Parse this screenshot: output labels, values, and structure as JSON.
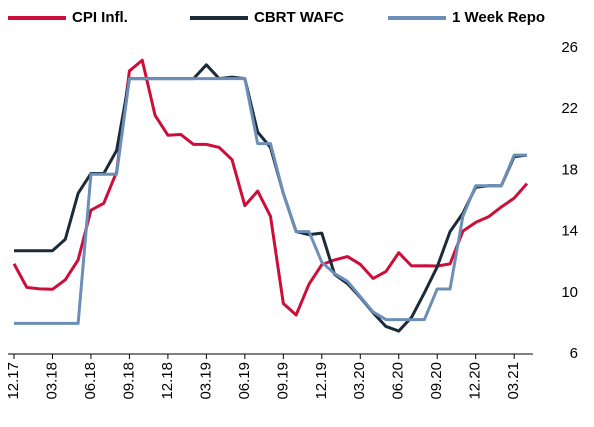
{
  "chart_data": {
    "type": "line",
    "categories": [
      "12.17",
      null,
      null,
      "03.18",
      null,
      null,
      "06.18",
      null,
      null,
      "09.18",
      null,
      null,
      "12.18",
      null,
      null,
      "03.19",
      null,
      null,
      "06.19",
      null,
      null,
      "09.19",
      null,
      null,
      "12.19",
      null,
      null,
      "03.20",
      null,
      null,
      "06.20",
      null,
      null,
      "09.20",
      null,
      null,
      "12.20",
      null,
      null,
      "03.21",
      null
    ],
    "series": [
      {
        "name": "CPI Infl.",
        "color": "#cc0e3a",
        "values": [
          11.9,
          10.35,
          10.26,
          10.23,
          10.85,
          12.15,
          15.4,
          15.85,
          17.9,
          24.5,
          25.2,
          21.6,
          20.3,
          20.35,
          19.7,
          19.7,
          19.5,
          18.7,
          15.7,
          16.65,
          15.0,
          9.3,
          8.55,
          10.56,
          11.84,
          12.15,
          12.37,
          11.86,
          10.94,
          11.39,
          12.62,
          11.76,
          11.77,
          11.75,
          11.89,
          14.03,
          14.6,
          14.97,
          15.61,
          16.19,
          17.14
        ]
      },
      {
        "name": "CBRT WAFC",
        "color": "#1c2b3a",
        "values": [
          12.75,
          12.75,
          12.75,
          12.75,
          13.5,
          16.5,
          17.8,
          17.8,
          19.3,
          24,
          24,
          24,
          24,
          24,
          24,
          24.9,
          24,
          24.1,
          24,
          20.5,
          19.5,
          16.5,
          14,
          13.8,
          13.9,
          11.2,
          10.6,
          9.7,
          8.7,
          7.8,
          7.5,
          8.4,
          10,
          11.7,
          14,
          15.2,
          16.9,
          17,
          17,
          18.9,
          19
        ]
      },
      {
        "name": "1 Week Repo",
        "color": "#6b8fb6",
        "values": [
          8,
          8,
          8,
          8,
          8,
          8,
          17.75,
          17.75,
          17.75,
          24,
          24,
          24,
          24,
          24,
          24,
          24,
          24,
          24,
          24,
          19.75,
          19.75,
          16.5,
          14,
          14,
          12,
          11.25,
          10.75,
          9.75,
          8.75,
          8.25,
          8.25,
          8.25,
          8.25,
          10.25,
          10.25,
          15,
          17,
          17,
          17,
          19,
          19
        ]
      }
    ],
    "ylim": [
      6,
      26
    ],
    "yticks": [
      6,
      10,
      14,
      18,
      22,
      26
    ],
    "y_axis_side": "right",
    "legend": "top",
    "grid": false
  }
}
